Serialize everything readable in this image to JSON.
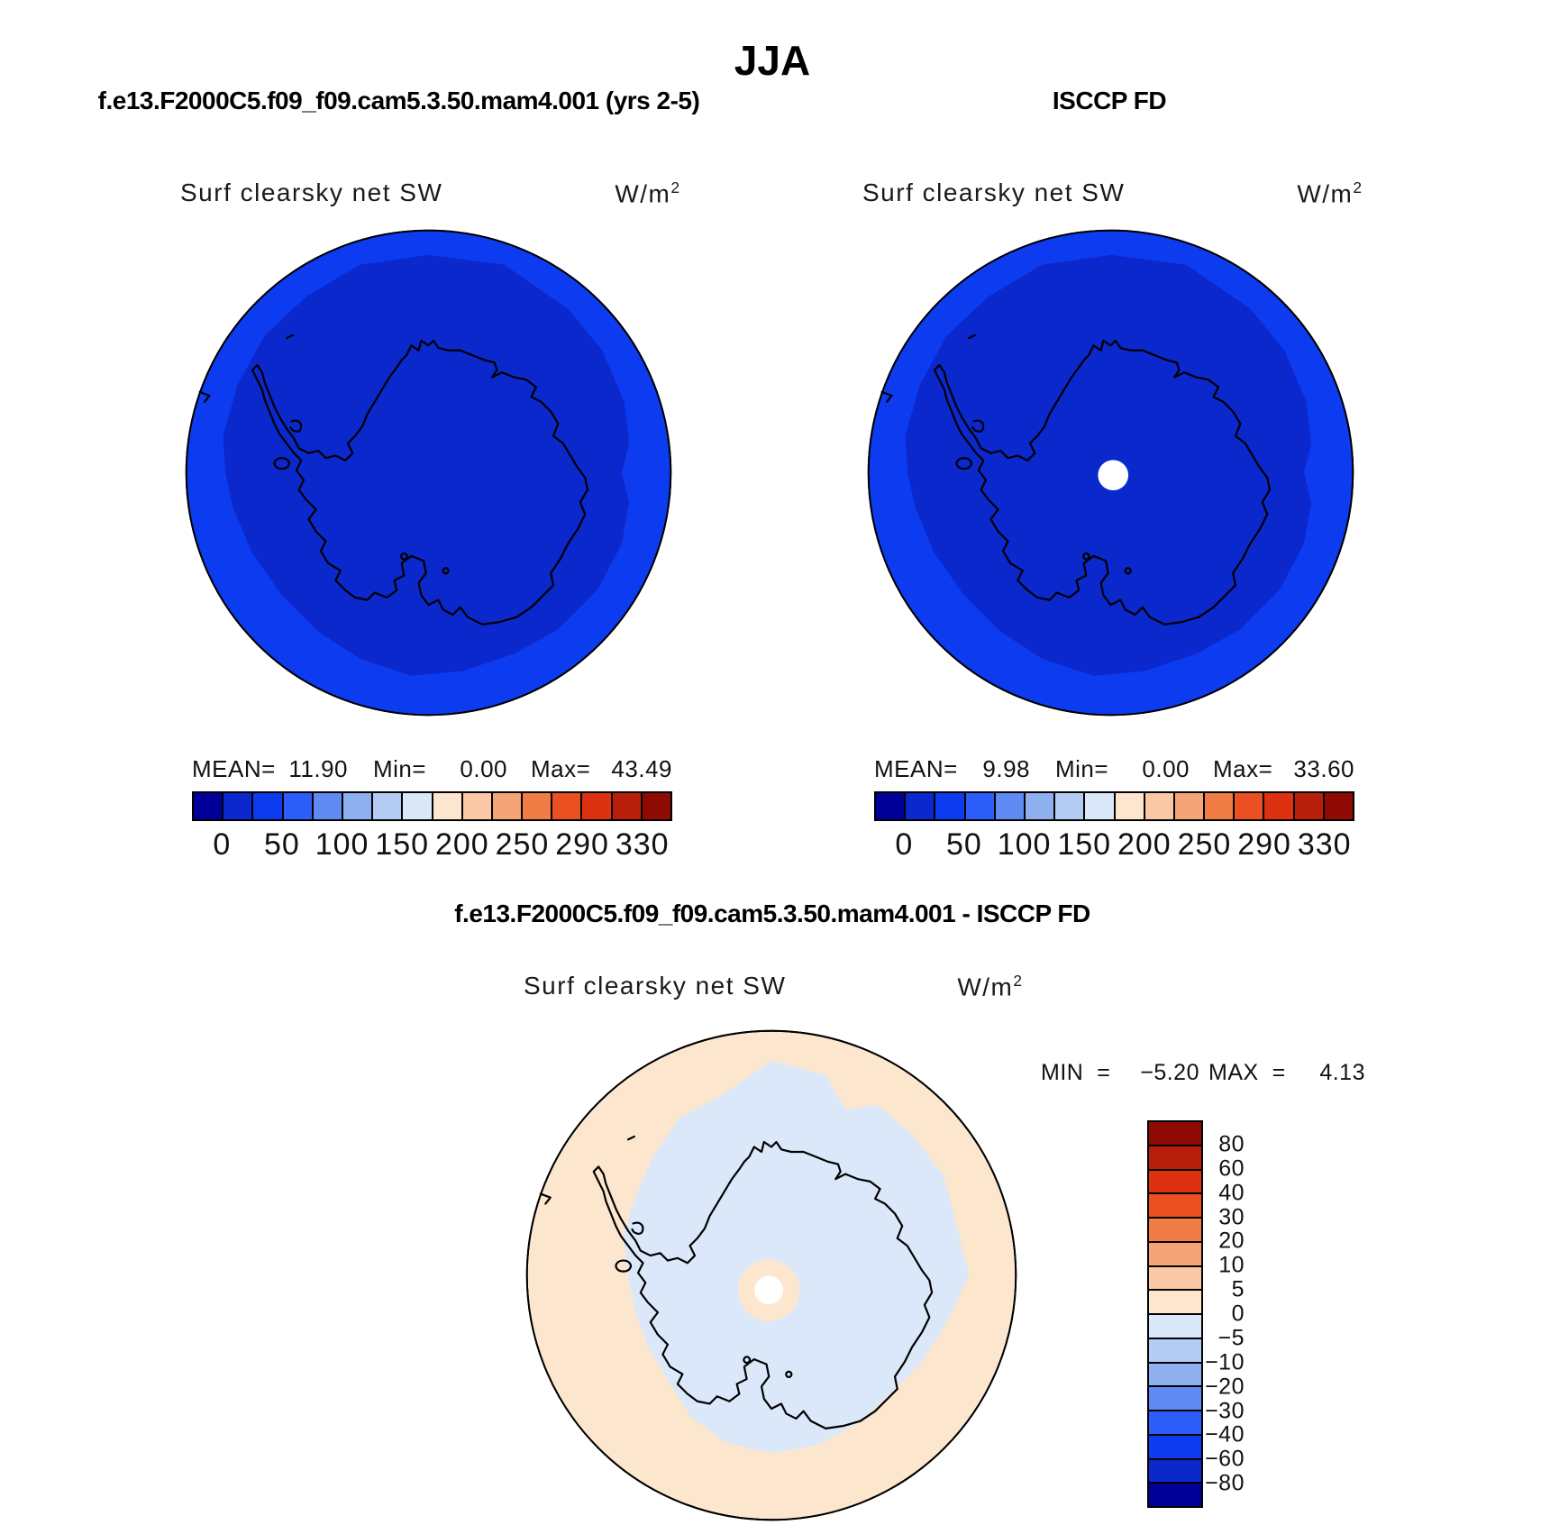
{
  "title": "JJA",
  "panels": {
    "model": {
      "header": "f.e13.F2000C5.f09_f09.cam5.3.50.mam4.001 (yrs 2-5)",
      "var_label": "Surf clearsky net SW",
      "units": "W/m",
      "units_exp": "2",
      "stats": {
        "mean_label": "MEAN=",
        "mean": "11.90",
        "min_label": "Min=",
        "min": "0.00",
        "max_label": "Max=",
        "max": "43.49"
      }
    },
    "obs": {
      "header": "ISCCP FD",
      "var_label": "Surf clearsky net SW",
      "units": "W/m",
      "units_exp": "2",
      "stats": {
        "mean_label": "MEAN=",
        "mean": "9.98",
        "min_label": "Min=",
        "min": "0.00",
        "max_label": "Max=",
        "max": "33.60"
      }
    },
    "diff": {
      "header": "f.e13.F2000C5.f09_f09.cam5.3.50.mam4.001 - ISCCP FD",
      "var_label": "Surf clearsky net SW",
      "units": "W/m",
      "units_exp": "2",
      "minmax": {
        "min_label": "MIN  =",
        "min": "−5.20",
        "max_label": "MAX  =",
        "max": "4.13"
      }
    }
  },
  "colorbar": {
    "palette": [
      "#000099",
      "#0B28CD",
      "#0D3BF0",
      "#2E5EFA",
      "#5F8AF2",
      "#8FB0EF",
      "#B4CCF2",
      "#DAE8FA",
      "#FCE7CE",
      "#F9C8A4",
      "#F5A477",
      "#F07C46",
      "#EB5023",
      "#DC3212",
      "#B81F0A",
      "#8F0A03"
    ],
    "ticks": [
      "0",
      "50",
      "100",
      "150",
      "200",
      "250",
      "290",
      "330"
    ]
  },
  "diff_colorbar": {
    "palette": [
      "#8F0A03",
      "#B81F0A",
      "#DC3212",
      "#EB5023",
      "#F07C46",
      "#F5A477",
      "#F9C8A4",
      "#FCE7CE",
      "#DAE8FA",
      "#B4CCF2",
      "#8FB0EF",
      "#5F8AF2",
      "#2E5EFA",
      "#0D3BF0",
      "#0B28CD",
      "#000099"
    ],
    "ticks": [
      "80",
      "60",
      "40",
      "30",
      "20",
      "10",
      "5",
      "0",
      "−5",
      "−10",
      "−20",
      "−30",
      "−40",
      "−60",
      "−80"
    ]
  },
  "map_colors": {
    "ocean_ring": "#0D3BF0",
    "interior": "#0B28CD",
    "diff_outer": "#FCE7CE",
    "diff_inner": "#DAE8FA",
    "missing": "#FFFFFF",
    "coastline": "#000000",
    "circle_outline": "#000000"
  },
  "chart_data": [
    {
      "type": "heatmap",
      "subtype": "south-polar-stereographic-map",
      "season": "JJA",
      "title": "f.e13.F2000C5.f09_f09.cam5.3.50.mam4.001 (yrs 2-5)",
      "variable": "Surf clearsky net SW",
      "units": "W/m^2",
      "region": "Antarctica / southern polar cap",
      "stats": {
        "mean": 11.9,
        "min": 0.0,
        "max": 43.49
      },
      "contour_levels": [
        0,
        25,
        50,
        75,
        100,
        125,
        150,
        175,
        200,
        225,
        250,
        270,
        290,
        310,
        330
      ],
      "tick_labels": [
        0,
        50,
        100,
        150,
        200,
        250,
        290,
        330
      ],
      "legend_position": "bottom",
      "description": "Entire cap in 0-50 W/m^2 range: interior 0-25, outer annulus 25-50"
    },
    {
      "type": "heatmap",
      "subtype": "south-polar-stereographic-map",
      "season": "JJA",
      "title": "ISCCP FD",
      "variable": "Surf clearsky net SW",
      "units": "W/m^2",
      "region": "Antarctica / southern polar cap",
      "stats": {
        "mean": 9.98,
        "min": 0.0,
        "max": 33.6
      },
      "contour_levels": [
        0,
        25,
        50,
        75,
        100,
        125,
        150,
        175,
        200,
        225,
        250,
        270,
        290,
        310,
        330
      ],
      "tick_labels": [
        0,
        50,
        100,
        150,
        200,
        250,
        290,
        330
      ],
      "legend_position": "bottom",
      "description": "Same pattern as model; white disc of missing data at the pole"
    },
    {
      "type": "heatmap",
      "subtype": "south-polar-stereographic-map",
      "season": "JJA",
      "title": "f.e13.F2000C5.f09_f09.cam5.3.50.mam4.001 - ISCCP FD",
      "variable": "Surf clearsky net SW difference",
      "units": "W/m^2",
      "stats": {
        "min": -5.2,
        "max": 4.13
      },
      "contour_levels": [
        -80,
        -60,
        -40,
        -30,
        -20,
        -10,
        -5,
        0,
        5,
        10,
        20,
        30,
        40,
        60,
        80
      ],
      "legend_position": "right",
      "description": "Outer annulus 0 to +5, inner irregular region -5 to 0, small 0-5 ring and missing-data hole at pole"
    }
  ]
}
